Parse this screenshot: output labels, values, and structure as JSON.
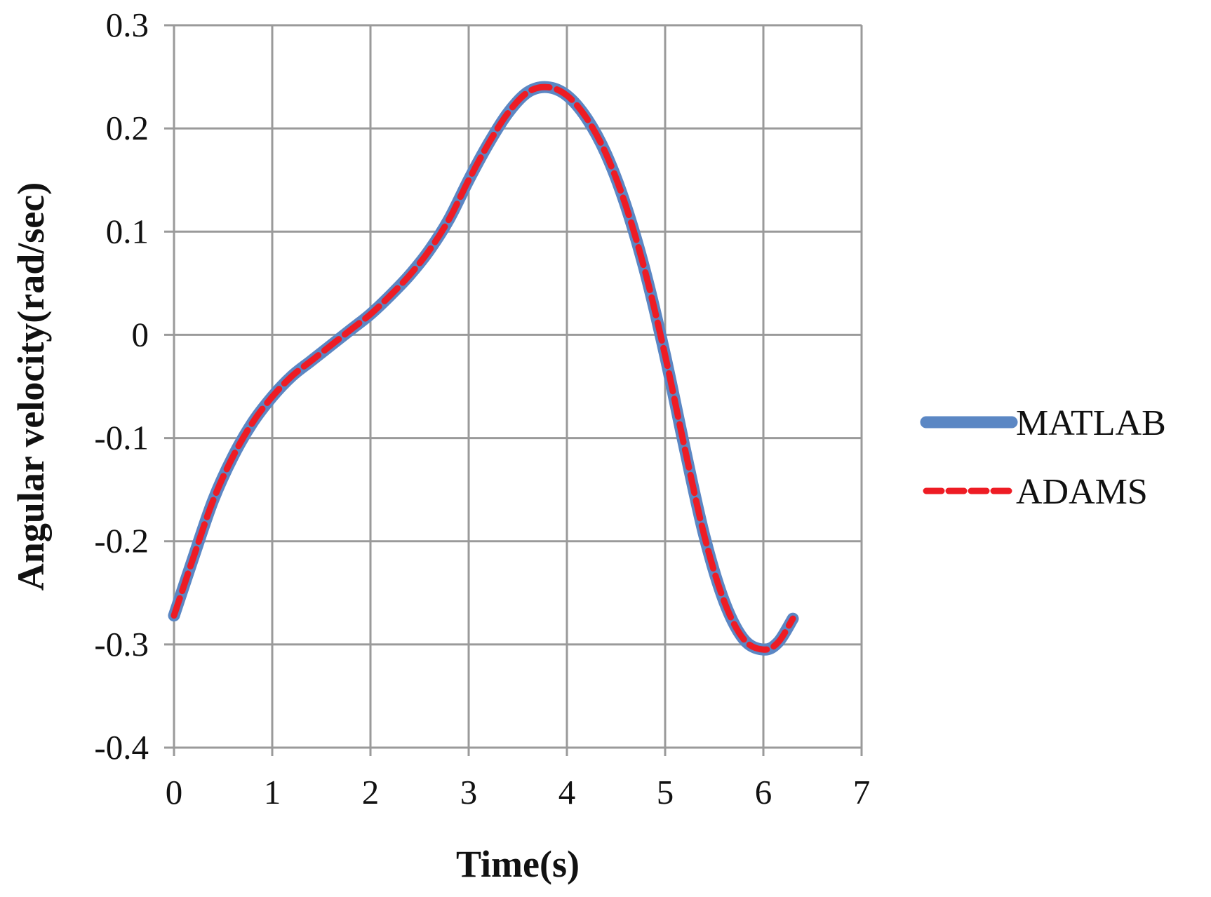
{
  "chart_data": {
    "type": "line",
    "title": "",
    "xlabel": "Time(s)",
    "ylabel": "Angular velocity(rad/sec)",
    "xlim": [
      0,
      7
    ],
    "ylim": [
      -0.4,
      0.3
    ],
    "x_ticks": [
      "0",
      "1",
      "2",
      "3",
      "4",
      "5",
      "6",
      "7"
    ],
    "y_ticks": [
      "0.3",
      "0.2",
      "0.1",
      "0",
      "-0.1",
      "-0.2",
      "-0.3",
      "-0.4"
    ],
    "grid": true,
    "legend_position": "right",
    "x": [
      0,
      0.2,
      0.4,
      0.6,
      0.8,
      1.0,
      1.2,
      1.4,
      1.6,
      1.8,
      2.0,
      2.2,
      2.4,
      2.6,
      2.8,
      3.0,
      3.2,
      3.4,
      3.6,
      3.8,
      4.0,
      4.2,
      4.4,
      4.6,
      4.8,
      5.0,
      5.2,
      5.4,
      5.6,
      5.8,
      6.0,
      6.15,
      6.3
    ],
    "series": [
      {
        "name": "MATLAB",
        "color": "#5b87c4",
        "style": "solid",
        "values": [
          -0.272,
          -0.215,
          -0.16,
          -0.118,
          -0.085,
          -0.06,
          -0.04,
          -0.025,
          -0.01,
          0.005,
          0.02,
          0.038,
          0.058,
          0.082,
          0.112,
          0.15,
          0.185,
          0.215,
          0.235,
          0.24,
          0.232,
          0.21,
          0.175,
          0.125,
          0.06,
          -0.02,
          -0.11,
          -0.195,
          -0.258,
          -0.295,
          -0.305,
          -0.298,
          -0.275
        ]
      },
      {
        "name": "ADAMS",
        "color": "#ee1c24",
        "style": "dashed",
        "values": [
          -0.272,
          -0.215,
          -0.16,
          -0.118,
          -0.085,
          -0.06,
          -0.04,
          -0.025,
          -0.01,
          0.005,
          0.02,
          0.038,
          0.058,
          0.082,
          0.112,
          0.15,
          0.185,
          0.215,
          0.235,
          0.24,
          0.232,
          0.21,
          0.175,
          0.125,
          0.06,
          -0.02,
          -0.11,
          -0.195,
          -0.258,
          -0.295,
          -0.305,
          -0.298,
          -0.275
        ]
      }
    ]
  }
}
